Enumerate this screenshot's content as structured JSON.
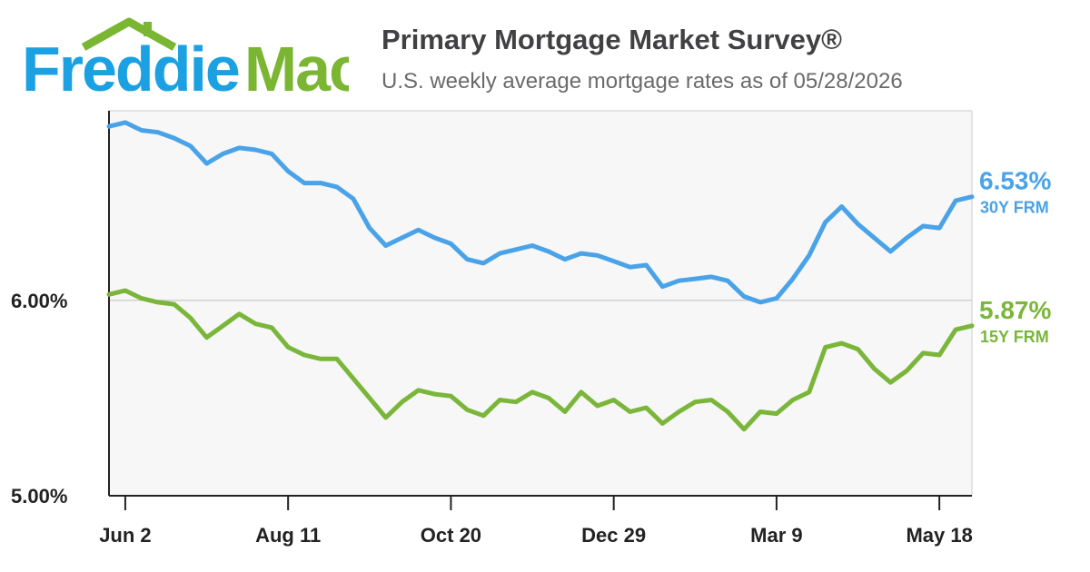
{
  "brand": {
    "name_part1": "Freddie",
    "name_part2": "Mac",
    "color_blue": "#1ba1e2",
    "color_green": "#7ab632"
  },
  "header": {
    "title": "Primary Mortgage Market Survey®",
    "subtitle": "U.S. weekly average mortgage rates as of 05/28/2026"
  },
  "chart_data": {
    "type": "line",
    "ylim": [
      5.0,
      6.97
    ],
    "y_ticks": [
      {
        "value": 6.0,
        "label": "6.00%"
      },
      {
        "value": 5.0,
        "label": "5.00%"
      }
    ],
    "x_ticks": [
      {
        "index": 1,
        "label": "Jun 2"
      },
      {
        "index": 11,
        "label": "Aug 11"
      },
      {
        "index": 21,
        "label": "Oct 20"
      },
      {
        "index": 31,
        "label": "Dec 29"
      },
      {
        "index": 41,
        "label": "Mar 9"
      },
      {
        "index": 51,
        "label": "May 18"
      }
    ],
    "grid": "horizontal at 6.00%",
    "series": [
      {
        "name": "30Y FRM",
        "color": "#4aa3e8",
        "end_label": "6.53%",
        "values": [
          6.89,
          6.91,
          6.87,
          6.86,
          6.83,
          6.79,
          6.7,
          6.75,
          6.78,
          6.77,
          6.75,
          6.66,
          6.6,
          6.6,
          6.58,
          6.52,
          6.37,
          6.28,
          6.32,
          6.36,
          6.32,
          6.29,
          6.21,
          6.19,
          6.24,
          6.26,
          6.28,
          6.25,
          6.21,
          6.24,
          6.23,
          6.2,
          6.17,
          6.18,
          6.07,
          6.1,
          6.11,
          6.12,
          6.1,
          6.02,
          5.99,
          6.01,
          6.11,
          6.23,
          6.4,
          6.48,
          6.39,
          6.32,
          6.25,
          6.32,
          6.38,
          6.37,
          6.51,
          6.53
        ]
      },
      {
        "name": "15Y FRM",
        "color": "#7ab63a",
        "end_label": "5.87%",
        "values": [
          6.03,
          6.05,
          6.01,
          5.99,
          5.98,
          5.91,
          5.81,
          5.87,
          5.93,
          5.88,
          5.86,
          5.76,
          5.72,
          5.7,
          5.7,
          5.6,
          5.5,
          5.4,
          5.48,
          5.54,
          5.52,
          5.51,
          5.44,
          5.41,
          5.49,
          5.48,
          5.53,
          5.5,
          5.43,
          5.53,
          5.46,
          5.49,
          5.43,
          5.45,
          5.37,
          5.43,
          5.48,
          5.49,
          5.43,
          5.34,
          5.43,
          5.42,
          5.49,
          5.53,
          5.76,
          5.78,
          5.75,
          5.65,
          5.58,
          5.64,
          5.73,
          5.72,
          5.85,
          5.87
        ]
      }
    ]
  }
}
